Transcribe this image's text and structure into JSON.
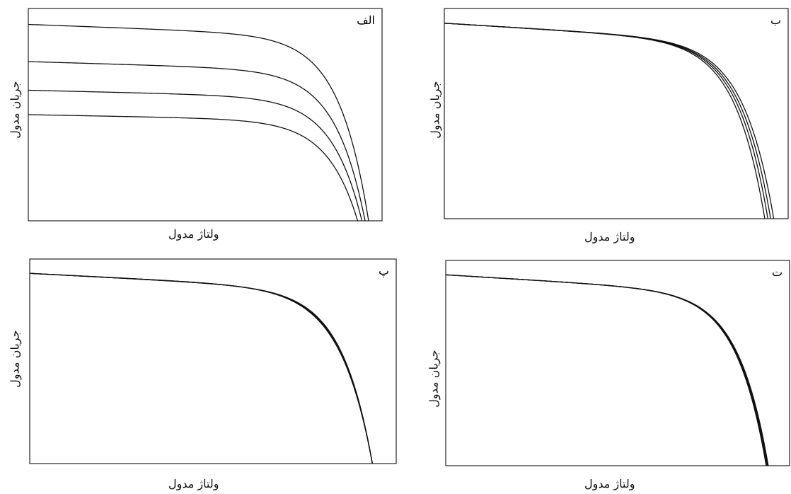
{
  "chart_data": [
    {
      "type": "line",
      "panel_label": "الف",
      "xlabel": "ولتاژ مدول",
      "ylabel": "جریان مدول",
      "ticks": "none",
      "grid": false,
      "xlim": [
        0,
        1
      ],
      "ylim": [
        0,
        1
      ],
      "series": [
        {
          "isc": 0.875,
          "voc": 0.962,
          "slope": 0.06,
          "knee": 0.86
        },
        {
          "isc": 0.7,
          "voc": 0.952,
          "slope": 0.06,
          "knee": 0.86
        },
        {
          "isc": 0.565,
          "voc": 0.943,
          "slope": 0.06,
          "knee": 0.86
        },
        {
          "isc": 0.45,
          "voc": 0.931,
          "slope": 0.06,
          "knee": 0.86
        }
      ]
    },
    {
      "type": "line",
      "panel_label": "ب",
      "xlabel": "ولتاژ مدول",
      "ylabel": "جریان مدول",
      "ticks": "none",
      "grid": false,
      "xlim": [
        0,
        1
      ],
      "ylim": [
        0,
        1
      ],
      "series": [
        {
          "isc": 0.88,
          "voc": 0.958,
          "slope": 0.1,
          "knee": 0.8
        },
        {
          "isc": 0.88,
          "voc": 0.949,
          "slope": 0.1,
          "knee": 0.8
        },
        {
          "isc": 0.88,
          "voc": 0.941,
          "slope": 0.1,
          "knee": 0.8
        },
        {
          "isc": 0.88,
          "voc": 0.932,
          "slope": 0.1,
          "knee": 0.8
        }
      ]
    },
    {
      "type": "line",
      "panel_label": "پ",
      "xlabel": "ولتاژ مدول",
      "ylabel": "جریان مدول",
      "ticks": "none",
      "grid": false,
      "xlim": [
        0,
        1
      ],
      "ylim": [
        0,
        1
      ],
      "series": [
        {
          "isc": 0.88,
          "voc": 0.935,
          "slope": 0.09,
          "knee": 0.84
        },
        {
          "isc": 0.88,
          "voc": 0.935,
          "slope": 0.09,
          "knee": 0.82
        },
        {
          "isc": 0.88,
          "voc": 0.935,
          "slope": 0.09,
          "knee": 0.8
        },
        {
          "isc": 0.88,
          "voc": 0.935,
          "slope": 0.09,
          "knee": 0.78
        }
      ]
    },
    {
      "type": "line",
      "panel_label": "ت",
      "xlabel": "ولتاژ مدول",
      "ylabel": "جریان مدول",
      "ticks": "none",
      "grid": false,
      "xlim": [
        0,
        1
      ],
      "ylim": [
        0,
        1
      ],
      "series": [
        {
          "isc": 0.88,
          "voc": 0.938,
          "slope": 0.1,
          "knee": 0.8
        },
        {
          "isc": 0.88,
          "voc": 0.936,
          "slope": 0.1,
          "knee": 0.8
        },
        {
          "isc": 0.88,
          "voc": 0.934,
          "slope": 0.1,
          "knee": 0.8
        },
        {
          "isc": 0.88,
          "voc": 0.932,
          "slope": 0.1,
          "knee": 0.8
        }
      ]
    }
  ],
  "colors": {
    "line": "#111111",
    "frame": "#222222",
    "background": "#ffffff"
  }
}
